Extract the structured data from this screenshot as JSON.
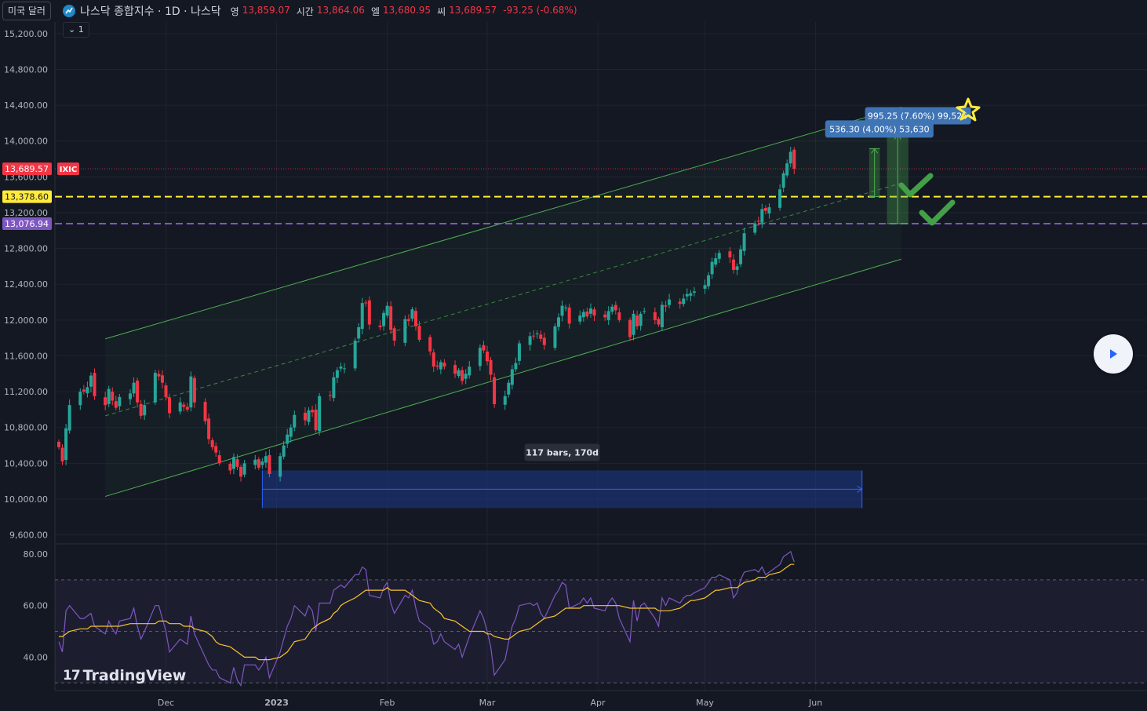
{
  "header": {
    "currency_label": "미국 달러",
    "symbol_title": "나스닥 종합지수 · 1D · 나스닥",
    "ohlc": [
      {
        "label": "영",
        "value": "13,859.07"
      },
      {
        "label": "시간",
        "value": "13,864.06"
      },
      {
        "label": "엘",
        "value": "13,680.95"
      },
      {
        "label": "씨",
        "value": "13,689.57"
      }
    ],
    "change": "-93.25 (-0.68%)",
    "collapse_label": "1"
  },
  "watermark": "TradingView",
  "colors": {
    "up": "#26a69a",
    "down": "#f23645",
    "channel": "#4caf50",
    "yellow_line": "#ffeb3b",
    "purple_line": "#7e57c2",
    "rsi_line": "#7e57c2",
    "rsi_ma": "#f7c52b",
    "range_box": "#1c3a8c",
    "label_box": "#3f74b5"
  },
  "chart_data": {
    "type": "candlestick",
    "symbol": "IXIC",
    "timeframe": "1D",
    "price_axis": {
      "ticks": [
        "15,200.00",
        "14,800.00",
        "14,400.00",
        "14,000.00",
        "13,600.00",
        "13,200.00",
        "12,800.00",
        "12,400.00",
        "12,000.00",
        "11,600.00",
        "11,200.00",
        "10,800.00",
        "10,400.00",
        "10,000.00",
        "9,600.00"
      ],
      "range": [
        9500,
        15330
      ]
    },
    "time_axis": [
      "Dec",
      "2023",
      "Feb",
      "Mar",
      "Apr",
      "May",
      "Jun"
    ],
    "price_labels": [
      {
        "value": 13689.57,
        "text": "13,689.57",
        "tag": "IXIC",
        "color": "#f23645"
      },
      {
        "value": 13378.6,
        "text": "13,378.60",
        "color": "#ffeb3b"
      },
      {
        "value": 13076.94,
        "text": "13,076.94",
        "color": "#7e57c2"
      }
    ],
    "horizontal_lines": [
      {
        "value": 13378.6,
        "style": "dashed",
        "color": "#ffeb3b"
      },
      {
        "value": 13076.94,
        "style": "dashed",
        "color": "#7e57c2"
      },
      {
        "value": 13689.57,
        "style": "dotted",
        "color": "#f23645"
      }
    ],
    "channel": {
      "start_date": "2022-11-14",
      "end_date": "2023-06-25",
      "upper": [
        11790,
        14380
      ],
      "middle": [
        10930,
        13530
      ],
      "lower": [
        10030,
        12680
      ]
    },
    "date_range_measure": {
      "from": "2022-12-28",
      "to": "2023-06-14",
      "low": 9900,
      "high": 10320,
      "label": "117 bars, 170d"
    },
    "price_measures": [
      {
        "from_date": "2023-06-16",
        "to_date": "2023-06-19",
        "base": 13378.6,
        "top": 13915,
        "label": "536.30 (4.00%) 53,630"
      },
      {
        "from_date": "2023-06-21",
        "to_date": "2023-06-27",
        "base": 13076.94,
        "top": 14072,
        "label": "995.25 (7.60%) 99,525"
      }
    ],
    "closes": [
      10580,
      10420,
      10790,
      11050,
      11200,
      11200,
      11250,
      11380,
      11150,
      11050,
      11230,
      11100,
      11020,
      11140,
      11180,
      11300,
      11080,
      10930,
      11050,
      11410,
      11370,
      11300,
      11140,
      10960,
      11080,
      11030,
      11000,
      11370,
      11080,
      10870,
      10670,
      10580,
      10520,
      10400,
      10320,
      10470,
      10360,
      10250,
      10400,
      10440,
      10350,
      10420,
      10480,
      10280,
      10480,
      10600,
      10720,
      10800,
      10940,
      10880,
      10990,
      10970,
      10770,
      11150,
      11160,
      11360,
      11440,
      11480,
      11460,
      11770,
      11920,
      12190,
      12190,
      11950,
      11920,
      12080,
      12160,
      11890,
      11770,
      12010,
      11990,
      12120,
      11930,
      11780,
      11650,
      11480,
      11480,
      11530,
      11480,
      11400,
      11440,
      11320,
      11400,
      11480,
      11690,
      11660,
      11540,
      11390,
      11060,
      11150,
      11300,
      11450,
      11520,
      11740,
      11820,
      11820,
      11850,
      11790,
      11720,
      11930,
      12030,
      12160,
      12140,
      11960,
      12050,
      12090,
      12040,
      12130,
      12050,
      12030,
      12100,
      12150,
      12110,
      12000,
      11810,
      12070,
      11930,
      12070,
      12100,
      12000,
      11950,
      12170,
      12150,
      12230,
      12180,
      12240,
      12290,
      12300,
      12320,
      12390,
      12500,
      12650,
      12690,
      12750,
      12700,
      12560,
      12600,
      12790,
      12970,
      13080,
      13100,
      13240,
      13220,
      13260,
      13460,
      13640,
      13750,
      13880,
      13690
    ],
    "rsi": {
      "axis_ticks": [
        "80.00",
        "60.00",
        "40.00"
      ],
      "range": [
        27,
        84
      ],
      "bands": [
        70,
        50,
        30
      ],
      "values": [
        46,
        42,
        58,
        60,
        55,
        55,
        56,
        57,
        52,
        49,
        54,
        51,
        49,
        54,
        55,
        59,
        52,
        47,
        50,
        60,
        60,
        55,
        50,
        42,
        47,
        46,
        45,
        56,
        49,
        40,
        37,
        35,
        35,
        32,
        30,
        36,
        31,
        29,
        37,
        37,
        35,
        37,
        40,
        32,
        42,
        47,
        52,
        55,
        60,
        56,
        60,
        58,
        50,
        61,
        61,
        66,
        67,
        68,
        67,
        72,
        72,
        75,
        74,
        64,
        63,
        67,
        69,
        61,
        57,
        64,
        63,
        66,
        59,
        54,
        51,
        45,
        46,
        49,
        46,
        43,
        45,
        40,
        44,
        48,
        58,
        55,
        50,
        44,
        33,
        39,
        46,
        52,
        55,
        60,
        61,
        60,
        61,
        57,
        55,
        64,
        66,
        69,
        68,
        59,
        61,
        63,
        61,
        63,
        59,
        58,
        61,
        63,
        61,
        55,
        46,
        62,
        54,
        60,
        61,
        55,
        52,
        63,
        60,
        63,
        61,
        63,
        64,
        64,
        65,
        67,
        69,
        71,
        71,
        72,
        70,
        63,
        65,
        70,
        73,
        74,
        73,
        75,
        72,
        73,
        76,
        79,
        80,
        81,
        77
      ],
      "ma_values": [
        48,
        48,
        49,
        50,
        51,
        51,
        51,
        52,
        52,
        52,
        52,
        52,
        52,
        52,
        53,
        53,
        53,
        53,
        53,
        53,
        54,
        54,
        54,
        53,
        53,
        52,
        52,
        52,
        51,
        50,
        49,
        48,
        46,
        45,
        44,
        43,
        42,
        41,
        40,
        40,
        39,
        39,
        39,
        39,
        40,
        41,
        42,
        44,
        46,
        47,
        49,
        51,
        52,
        53,
        55,
        57,
        58,
        60,
        61,
        63,
        64,
        65,
        66,
        66,
        66,
        66,
        67,
        66,
        66,
        66,
        65,
        64,
        63,
        62,
        61,
        59,
        58,
        57,
        55,
        54,
        53,
        52,
        51,
        50,
        50,
        50,
        49,
        49,
        48,
        47,
        47,
        48,
        49,
        50,
        51,
        52,
        53,
        54,
        55,
        56,
        57,
        58,
        59,
        59,
        59,
        60,
        60,
        60,
        60,
        60,
        60,
        60,
        60,
        60,
        59,
        59,
        59,
        59,
        59,
        59,
        58,
        58,
        58,
        58,
        59,
        60,
        61,
        62,
        62,
        63,
        64,
        65,
        66,
        66,
        67,
        67,
        67,
        68,
        69,
        70,
        71,
        71,
        71,
        72,
        73,
        74,
        75,
        76,
        76
      ]
    }
  }
}
